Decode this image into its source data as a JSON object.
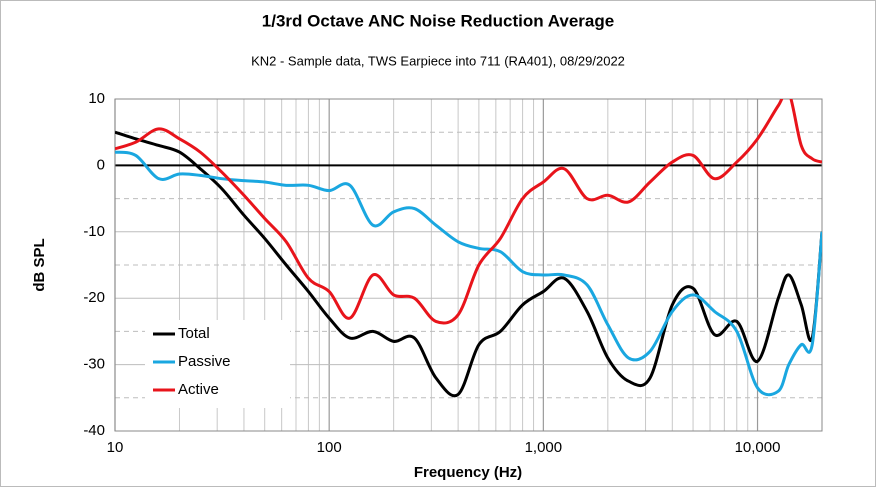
{
  "chart_data": {
    "type": "line",
    "title": "1/3rd Octave ANC Noise Reduction Average",
    "subtitle": "KN2 - Sample data, TWS Earpiece into 711 (RA401), 08/29/2022",
    "x_label": "Frequency (Hz)",
    "y_label": "dB SPL",
    "x": [
      10,
      12.5,
      16,
      20,
      25,
      31.5,
      40,
      50,
      63,
      80,
      100,
      125,
      160,
      200,
      250,
      315,
      400,
      500,
      630,
      800,
      1000,
      1250,
      1600,
      2000,
      2500,
      3150,
      4000,
      5000,
      6300,
      8000,
      10000,
      12500,
      14000,
      16000,
      18000,
      20000
    ],
    "series": [
      {
        "name": "Total",
        "color": "#000000",
        "values": [
          5,
          4,
          3,
          2,
          -0.5,
          -3.5,
          -7.5,
          -11,
          -15,
          -19,
          -23,
          -26,
          -25,
          -26.5,
          -26,
          -32,
          -34.5,
          -27,
          -25,
          -21,
          -19,
          -17,
          -22,
          -29,
          -32.5,
          -32,
          -21,
          -18.5,
          -25.5,
          -23.5,
          -29.5,
          -20,
          -16.5,
          -21,
          -26,
          -10
        ]
      },
      {
        "name": "Passive",
        "color": "#1aa7e0",
        "values": [
          2,
          1.5,
          -2,
          -1.3,
          -1.5,
          -2,
          -2.3,
          -2.5,
          -3,
          -3,
          -3.8,
          -3,
          -9,
          -7,
          -6.5,
          -9,
          -11.5,
          -12.5,
          -13,
          -16,
          -16.5,
          -16.5,
          -18,
          -24,
          -29,
          -28,
          -22,
          -19.5,
          -22,
          -25,
          -33.5,
          -34,
          -30,
          -27,
          -27,
          -10
        ]
      },
      {
        "name": "Active",
        "color": "#e8141b",
        "values": [
          2.5,
          3.5,
          5.5,
          4,
          2,
          -1,
          -4.5,
          -8,
          -11.5,
          -17,
          -19,
          -23,
          -16.5,
          -19.5,
          -20,
          -23.5,
          -22.5,
          -15,
          -11,
          -5,
          -2.5,
          -0.5,
          -5,
          -4.5,
          -5.5,
          -2.5,
          0.5,
          1.5,
          -2,
          0.5,
          4,
          9,
          11,
          3,
          1,
          0.5
        ]
      }
    ],
    "xlim": [
      10,
      20000
    ],
    "ylim": [
      -40,
      10
    ],
    "log_x": true,
    "grid": true,
    "xticks": [
      10,
      100,
      {
        "value": 1000,
        "label": "1,000"
      },
      {
        "value": 10000,
        "label": "10,000"
      }
    ],
    "yticks": [
      -40,
      -30,
      -20,
      -10,
      0,
      10
    ],
    "legend": "lower left"
  }
}
